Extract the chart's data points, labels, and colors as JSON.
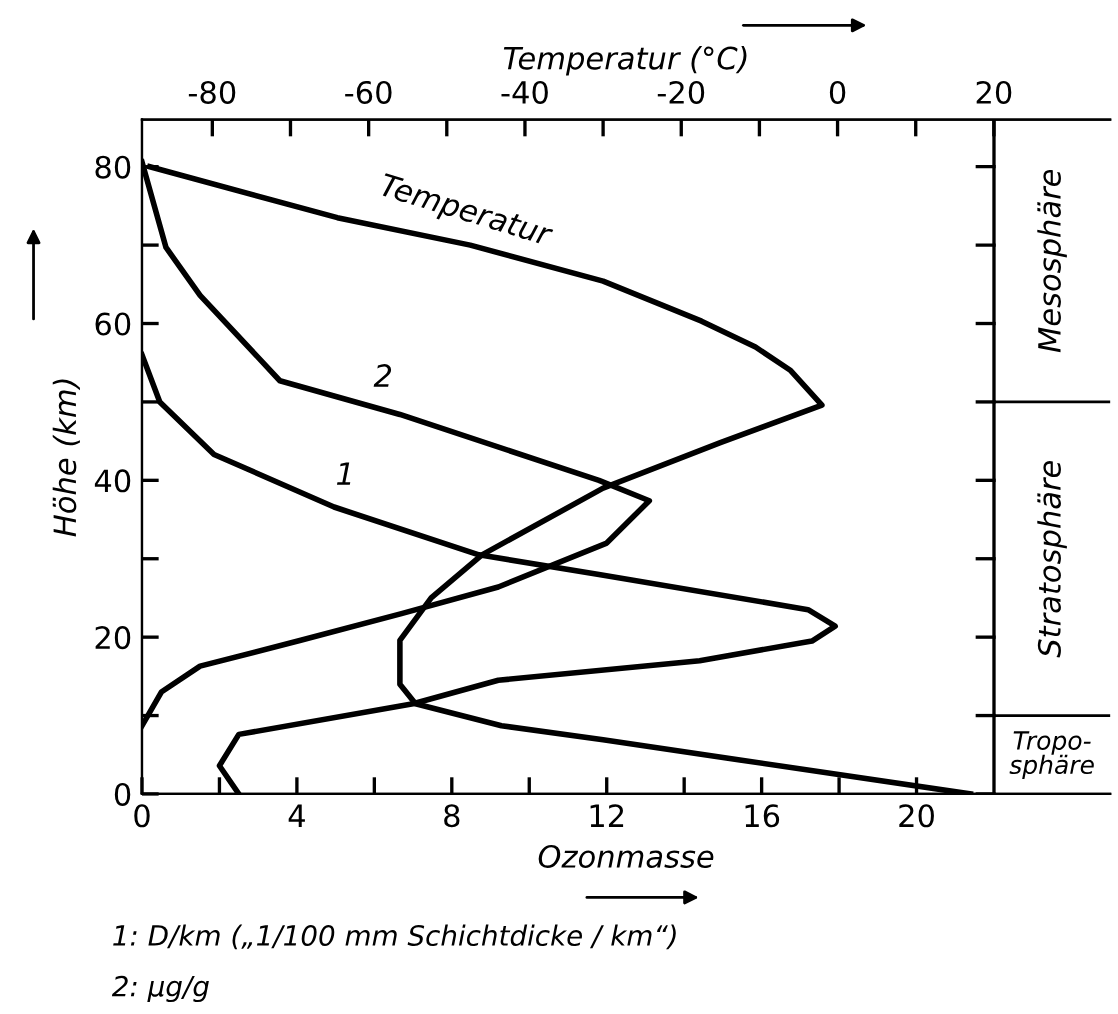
{
  "chart_data": {
    "type": "line",
    "xlabel": "Ozonmasse",
    "ylabel": "Höhe (km)",
    "x2label": "Temperatur (°C)",
    "xlim": [
      0,
      25
    ],
    "ylim": [
      0,
      86
    ],
    "x2lim": [
      -89,
      34.88
    ],
    "xticks": [
      0,
      {
        "value": 2,
        "label": null
      },
      4,
      {
        "value": 6,
        "label": null
      },
      8,
      {
        "value": 10,
        "label": null
      },
      12,
      {
        "value": 14,
        "label": null
      },
      16,
      {
        "value": 18,
        "label": null
      },
      20
    ],
    "yticks": [
      0,
      {
        "value": 10,
        "label": null
      },
      20,
      {
        "value": 30,
        "label": null
      },
      40,
      {
        "value": 50,
        "label": null
      },
      60,
      {
        "value": 70,
        "label": null
      },
      80
    ],
    "x2ticks": [
      -80,
      {
        "value": -70,
        "label": null
      },
      -60,
      {
        "value": -50,
        "label": null
      },
      -40,
      {
        "value": -30,
        "label": null
      },
      -20,
      {
        "value": -10,
        "label": null
      },
      0,
      {
        "value": 10,
        "label": null
      },
      20
    ],
    "series": [
      {
        "name": "1",
        "color": "#000000",
        "x": [
          2.5,
          2.0,
          2.5,
          7.0,
          9.2,
          14.4,
          17.3,
          17.9,
          17.2,
          11.8,
          8.7,
          4.96,
          1.86,
          0.46,
          0
        ],
        "values": [
          0,
          3.6,
          7.6,
          11.5,
          14.5,
          17,
          19.5,
          21.4,
          23.5,
          28,
          30.5,
          36.6,
          43.3,
          50,
          56
        ]
      },
      {
        "name": "2",
        "color": "#000000",
        "x": [
          0,
          0.5,
          1.5,
          4.1,
          6.7,
          9.2,
          12,
          13.1,
          11.8,
          6.66,
          3.56,
          1.5,
          0.62,
          0
        ],
        "values": [
          8.7,
          13,
          16.3,
          19.6,
          23,
          26.4,
          32,
          37.4,
          40,
          48.4,
          52.7,
          63.6,
          69.7,
          80.6
        ]
      },
      {
        "name": "Temperatur",
        "color": "#000000",
        "axis": "x2",
        "x": [
          17,
          -30,
          -43,
          -54,
          -56,
          -56,
          -52,
          -45.5,
          -30,
          -15,
          -2,
          -6,
          -10.5,
          -17.4,
          -30,
          -47,
          -64,
          -88
        ],
        "values": [
          0,
          6.9,
          8.7,
          11.5,
          14,
          19.6,
          25,
          30.5,
          39,
          44.8,
          49.6,
          54,
          57,
          60.3,
          65.4,
          70,
          73.5,
          80
        ]
      }
    ],
    "ref_lines": [
      {
        "axis": "x",
        "value": 22
      },
      {
        "axis": "y",
        "value": 10
      },
      {
        "axis": "y",
        "value": 50
      }
    ],
    "annotations": [
      "Tropo-\nsphäre",
      "Stratosphäre",
      "Mesosphäre",
      "1: D/km („1/100 mm Schichtdicke / km“)",
      "2: µg/g"
    ],
    "grid": false,
    "legend": false,
    "line_style": "solid",
    "marker": "none"
  }
}
